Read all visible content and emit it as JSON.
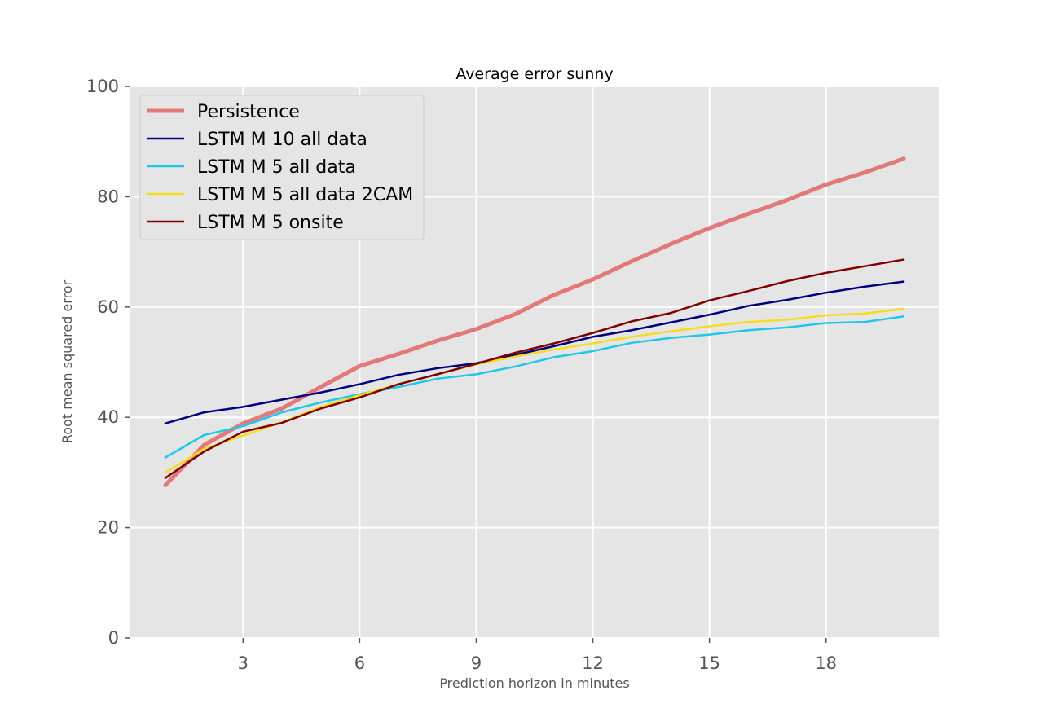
{
  "chart_data": {
    "type": "line",
    "title": "Average error sunny",
    "xlabel": "Prediction horizon in minutes",
    "ylabel": "Root mean squared error",
    "xlim": [
      0.1,
      20.9
    ],
    "ylim": [
      0,
      100
    ],
    "xticks": [
      3,
      6,
      9,
      12,
      15,
      18
    ],
    "yticks": [
      0,
      20,
      40,
      60,
      80,
      100
    ],
    "grid": true,
    "legend_position": "top-left",
    "x": [
      1,
      2,
      3,
      4,
      5,
      6,
      7,
      8,
      9,
      10,
      11,
      12,
      13,
      14,
      15,
      16,
      17,
      18,
      19,
      20
    ],
    "series": [
      {
        "name": "Persistence",
        "color": "#e06666",
        "values": [
          27.7,
          35.0,
          38.9,
          41.6,
          45.5,
          49.3,
          51.5,
          53.9,
          56.0,
          58.7,
          62.2,
          65.0,
          68.3,
          71.4,
          74.3,
          76.9,
          79.4,
          82.2,
          84.4,
          86.9
        ]
      },
      {
        "name": "LSTM M 10 all data",
        "color": "#00007f",
        "values": [
          38.9,
          40.9,
          41.9,
          43.2,
          44.5,
          46.0,
          47.7,
          48.9,
          49.8,
          51.3,
          52.9,
          54.6,
          55.8,
          57.2,
          58.6,
          60.2,
          61.3,
          62.6,
          63.7,
          64.6
        ]
      },
      {
        "name": "LSTM M 5 all data",
        "color": "#1fc8e8",
        "values": [
          32.7,
          36.8,
          38.4,
          40.9,
          42.7,
          44.2,
          45.5,
          47.0,
          47.8,
          49.2,
          50.9,
          52.0,
          53.5,
          54.4,
          55.0,
          55.8,
          56.3,
          57.1,
          57.3,
          58.3
        ]
      },
      {
        "name": "LSTM M 5 all data 2CAM",
        "color": "#f5dd1e",
        "values": [
          30.0,
          34.3,
          36.7,
          39.1,
          41.9,
          44.0,
          46.0,
          47.8,
          49.6,
          51.0,
          52.3,
          53.4,
          54.6,
          55.6,
          56.5,
          57.3,
          57.7,
          58.5,
          58.8,
          59.7
        ]
      },
      {
        "name": "LSTM M 5 onsite",
        "color": "#7f0000",
        "values": [
          29.0,
          33.8,
          37.4,
          39.0,
          41.6,
          43.6,
          46.0,
          47.8,
          49.7,
          51.7,
          53.4,
          55.3,
          57.4,
          58.9,
          61.2,
          62.9,
          64.7,
          66.2,
          67.4,
          68.6
        ]
      }
    ]
  }
}
